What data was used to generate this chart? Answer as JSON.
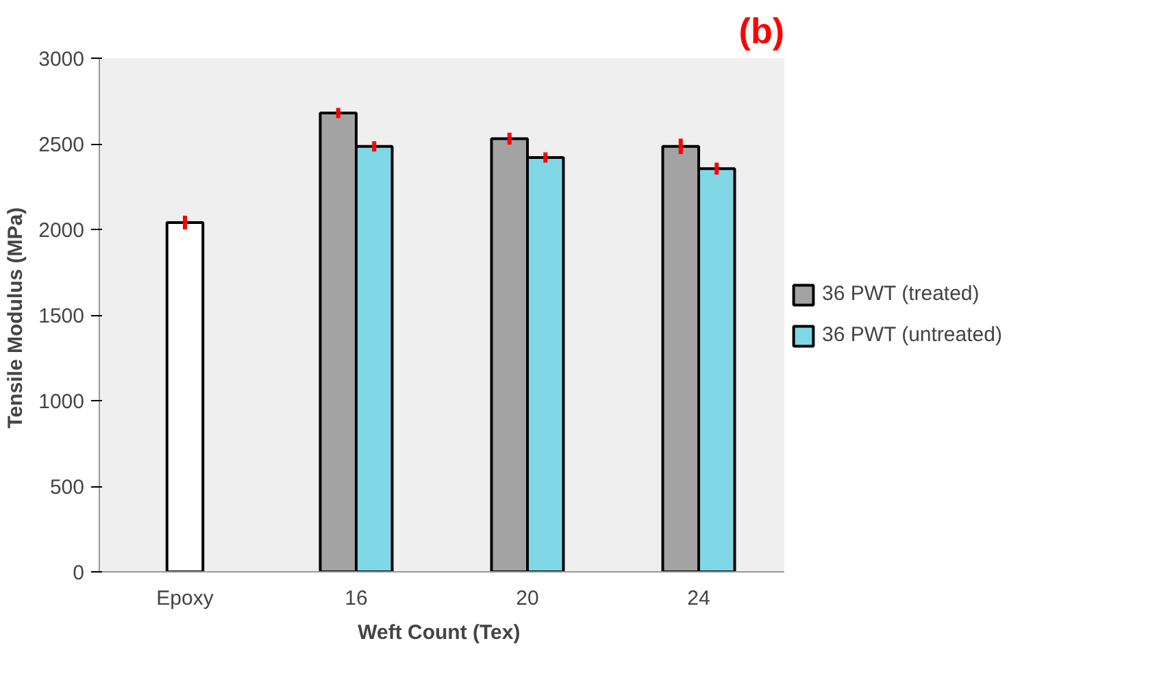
{
  "chart_data": {
    "type": "bar",
    "xlabel": "Weft Count  (Tex)",
    "ylabel": "Tensile Modulus  (MPa)",
    "annotations": [
      "(b)"
    ],
    "categories": [
      "Epoxy",
      "16",
      "20",
      "24"
    ],
    "series": [
      {
        "color": "#ffffff",
        "values": [
          2040,
          null,
          null,
          null
        ],
        "errors": [
          40,
          null,
          null,
          null
        ]
      },
      {
        "name": "36 PWT (treated)",
        "color": "#a3a3a3",
        "values": [
          null,
          2680,
          2530,
          2485
        ],
        "errors": [
          null,
          30,
          35,
          45
        ]
      },
      {
        "name": "36 PWT (untreated)",
        "color": "#80d8e6",
        "values": [
          null,
          2485,
          2420,
          2355
        ],
        "errors": [
          null,
          30,
          30,
          35
        ]
      }
    ],
    "ylim": [
      0,
      3000
    ],
    "yticks": [
      0,
      500,
      1000,
      1500,
      2000,
      2500,
      3000
    ],
    "grid": false,
    "legend": "right"
  }
}
